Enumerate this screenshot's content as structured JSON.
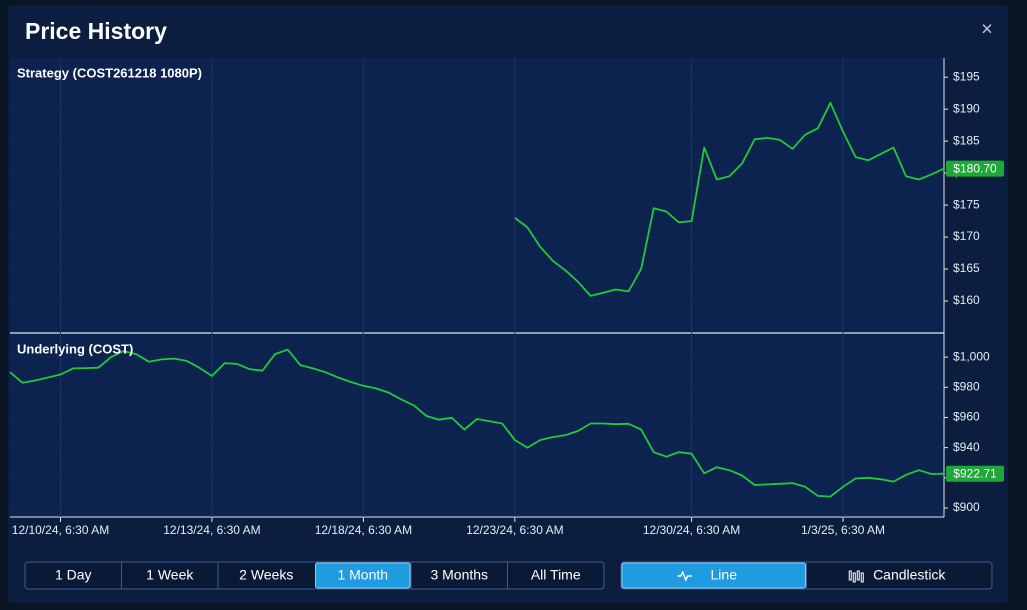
{
  "header": {
    "title": "Price History",
    "close": "×"
  },
  "chart_data": [
    {
      "type": "line",
      "title": "Strategy (COST261218 1080P)",
      "color": "#22c93a",
      "grid": true,
      "ylim": [
        155,
        198
      ],
      "yticks": [
        {
          "value": 160,
          "label": "$160"
        },
        {
          "value": 165,
          "label": "$165"
        },
        {
          "value": 170,
          "label": "$170"
        },
        {
          "value": 175,
          "label": "$175"
        },
        {
          "value": 180,
          "label": "$180"
        },
        {
          "value": 185,
          "label": "$185"
        },
        {
          "value": 190,
          "label": "$190"
        },
        {
          "value": 195,
          "label": "$195"
        }
      ],
      "values": [
        null,
        null,
        null,
        null,
        null,
        null,
        null,
        null,
        null,
        null,
        null,
        null,
        null,
        null,
        null,
        null,
        null,
        null,
        null,
        null,
        null,
        null,
        null,
        null,
        null,
        null,
        null,
        null,
        null,
        null,
        null,
        null,
        null,
        null,
        null,
        null,
        null,
        null,
        null,
        null,
        173.0,
        171.5,
        168.5,
        166.3,
        164.8,
        163.0,
        160.8,
        161.3,
        161.8,
        161.5,
        165.0,
        174.5,
        174.0,
        172.3,
        172.5,
        184.0,
        179.0,
        179.5,
        181.5,
        185.3,
        185.5,
        185.2,
        183.8,
        186.0,
        187.0,
        191.0,
        186.5,
        182.5,
        182.0,
        183.0,
        184.0,
        179.5,
        179.0,
        179.8,
        180.7
      ],
      "value_labels": [
        null,
        null,
        null,
        null,
        null,
        null,
        null,
        null,
        null,
        null,
        null,
        null,
        null,
        null,
        null,
        null,
        null,
        null,
        null,
        null,
        null,
        null,
        null,
        null,
        null,
        null,
        null,
        null,
        null,
        null,
        null,
        null,
        null,
        null,
        null,
        null,
        null,
        null,
        null,
        null,
        null,
        null,
        null,
        null,
        null,
        null,
        null,
        null,
        null,
        null,
        null,
        null,
        null,
        null,
        null,
        null,
        null,
        null,
        null,
        null,
        null,
        null,
        null,
        null,
        null,
        null,
        null,
        null,
        null,
        null,
        null,
        null,
        null,
        null,
        "$180.70"
      ]
    },
    {
      "type": "line",
      "title": "Underlying (COST)",
      "color": "#22c93a",
      "grid": true,
      "ylim": [
        894,
        1016
      ],
      "yticks": [
        {
          "value": 900,
          "label": "$900"
        },
        {
          "value": 920,
          "label": "$920"
        },
        {
          "value": 940,
          "label": "$940"
        },
        {
          "value": 960,
          "label": "$960"
        },
        {
          "value": 980,
          "label": "$980"
        },
        {
          "value": 1000,
          "label": "$1,000"
        }
      ],
      "categories": [
        null,
        null,
        null,
        null,
        "12/10/24, 6:30 AM",
        null,
        null,
        null,
        null,
        null,
        null,
        null,
        null,
        null,
        null,
        null,
        "12/13/24, 6:30 AM",
        null,
        null,
        null,
        null,
        null,
        null,
        null,
        null,
        null,
        null,
        null,
        "12/18/24, 6:30 AM",
        null,
        null,
        null,
        null,
        null,
        null,
        null,
        null,
        null,
        null,
        null,
        "12/23/24, 6:30 AM",
        null,
        null,
        null,
        null,
        null,
        null,
        null,
        null,
        null,
        null,
        null,
        null,
        null,
        "12/30/24, 6:30 AM",
        null,
        null,
        null,
        null,
        null,
        null,
        null,
        null,
        null,
        null,
        null,
        "1/3/25, 6:30 AM",
        null,
        null,
        null,
        null,
        null,
        null,
        null,
        null
      ],
      "values": [
        990,
        983,
        984.5,
        986.5,
        988.5,
        992.5,
        992.7,
        993,
        1000,
        1004,
        1002,
        997,
        998.5,
        999,
        997.5,
        993,
        987.5,
        996,
        995.5,
        992,
        991,
        1002,
        1005,
        994.7,
        992.5,
        990,
        986.5,
        983.5,
        981,
        979.3,
        976.5,
        972,
        968,
        961,
        958.5,
        959.8,
        952,
        959,
        957.5,
        956,
        945,
        940,
        945,
        947,
        948.3,
        951,
        956,
        956,
        955.5,
        955.8,
        952,
        937,
        934,
        937,
        936,
        923,
        927,
        925,
        921.5,
        915.2,
        915.6,
        916,
        916.5,
        914,
        908,
        907.5,
        914,
        919.5,
        920,
        919,
        917.5,
        922,
        925,
        922.5,
        922.71
      ],
      "value_labels": [
        null,
        null,
        null,
        null,
        null,
        null,
        null,
        null,
        null,
        null,
        null,
        null,
        null,
        null,
        null,
        null,
        null,
        null,
        null,
        null,
        null,
        null,
        null,
        null,
        null,
        null,
        null,
        null,
        null,
        null,
        null,
        null,
        null,
        null,
        null,
        null,
        null,
        null,
        null,
        null,
        null,
        null,
        null,
        null,
        null,
        null,
        null,
        null,
        null,
        null,
        null,
        null,
        null,
        null,
        null,
        null,
        null,
        null,
        null,
        null,
        null,
        null,
        null,
        null,
        null,
        null,
        null,
        null,
        null,
        null,
        null,
        null,
        null,
        null,
        "$922.71"
      ]
    }
  ],
  "range_buttons": [
    {
      "label": "1 Day"
    },
    {
      "label": "1 Week"
    },
    {
      "label": "2 Weeks"
    },
    {
      "label": "1 Month",
      "active": true
    },
    {
      "label": "3 Months"
    },
    {
      "label": "All Time"
    }
  ],
  "view_buttons": [
    {
      "label": "Line",
      "active": true
    },
    {
      "label": "Candlestick"
    }
  ]
}
